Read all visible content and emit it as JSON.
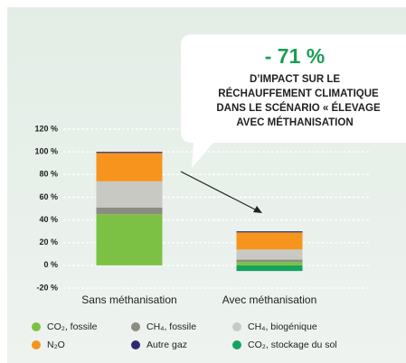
{
  "chart_data": {
    "type": "stacked_bar",
    "annotations": [
      "- 71 %",
      "D’IMPACT SUR LE",
      "RÉCHAUFFEMENT CLIMATIQUE",
      "DANS LE SCÉNARIO « ÉLEVAGE",
      "AVEC MÉTHANISATION"
    ],
    "categories": [
      "Sans méthanisation",
      "Avec méthanisation"
    ],
    "series": [
      {
        "name": "CO₂, fossile",
        "color": "#7cc144",
        "values": [
          45,
          3
        ]
      },
      {
        "name": "CH₄, fossile",
        "color": "#8d8c80",
        "values": [
          6,
          2
        ]
      },
      {
        "name": "CH₄, biogénique",
        "color": "#c9c9c3",
        "values": [
          23,
          9
        ]
      },
      {
        "name": "N₂O",
        "color": "#f7941d",
        "values": [
          25,
          15
        ]
      },
      {
        "name": "Autre gaz",
        "color": "#2e2a72",
        "values": [
          1,
          1
        ]
      },
      {
        "name": "CO₂, stockage du sol",
        "color": "#16a35f",
        "values": [
          0,
          -5
        ]
      }
    ],
    "ylim": [
      -20,
      120
    ],
    "yticks": [
      {
        "value": -20,
        "label": "-20 %"
      },
      {
        "value": 0,
        "label": "0 %"
      },
      {
        "value": 20,
        "label": "20 %"
      },
      {
        "value": 40,
        "label": "40 %"
      },
      {
        "value": 60,
        "label": "60 %"
      },
      {
        "value": 80,
        "label": "80 %"
      },
      {
        "value": 100,
        "label": "100 %"
      },
      {
        "value": 120,
        "label": "120 %"
      }
    ],
    "grid": true
  }
}
